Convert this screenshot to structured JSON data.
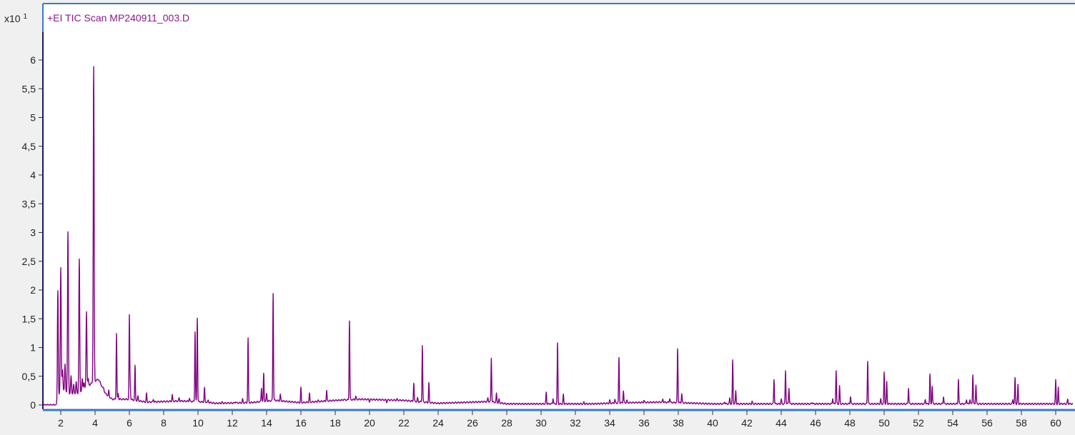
{
  "chart_data": {
    "type": "line",
    "title": "+EI TIC Scan MP240911_003.D",
    "y_multiplier": "x10",
    "y_multiplier_exp": "1",
    "xlabel": "",
    "ylabel": "",
    "xlim": [
      1.0,
      61.0
    ],
    "ylim": [
      0,
      6.5
    ],
    "x_ticks": [
      "2",
      "4",
      "6",
      "8",
      "10",
      "12",
      "14",
      "16",
      "18",
      "20",
      "22",
      "24",
      "26",
      "28",
      "30",
      "32",
      "34",
      "36",
      "38",
      "40",
      "42",
      "44",
      "46",
      "48",
      "50",
      "52",
      "54",
      "56",
      "58",
      "60"
    ],
    "y_ticks": [
      "0",
      "0,5",
      "1",
      "1,5",
      "2",
      "2,5",
      "3",
      "3,5",
      "4",
      "4,5",
      "5",
      "5,5",
      "6"
    ],
    "grid": false,
    "colors": {
      "trace": "#800080",
      "frame": "#3a78c8",
      "axis": "#1a1a60",
      "background": "#ffffff"
    },
    "series": [
      {
        "peaks": [
          [
            1.83,
            2.0
          ],
          [
            2.0,
            2.4
          ],
          [
            2.1,
            0.6
          ],
          [
            2.25,
            0.7
          ],
          [
            2.42,
            3.0
          ],
          [
            2.6,
            0.5
          ],
          [
            2.75,
            0.35
          ],
          [
            2.9,
            0.4
          ],
          [
            3.08,
            2.53
          ],
          [
            3.25,
            0.45
          ],
          [
            3.35,
            0.4
          ],
          [
            3.5,
            1.63
          ],
          [
            3.6,
            0.45
          ],
          [
            3.92,
            5.88
          ],
          [
            4.5,
            0.3
          ],
          [
            4.8,
            0.25
          ],
          [
            5.25,
            1.25
          ],
          [
            5.35,
            0.2
          ],
          [
            6.0,
            1.55
          ],
          [
            6.05,
            0.35
          ],
          [
            6.33,
            0.68
          ],
          [
            6.5,
            0.15
          ],
          [
            7.0,
            0.2
          ],
          [
            7.4,
            0.1
          ],
          [
            8.5,
            0.18
          ],
          [
            8.9,
            0.12
          ],
          [
            9.5,
            0.12
          ],
          [
            9.83,
            1.28
          ],
          [
            9.96,
            1.52
          ],
          [
            10.38,
            0.3
          ],
          [
            10.6,
            0.08
          ],
          [
            11.4,
            0.05
          ],
          [
            12.2,
            0.06
          ],
          [
            12.6,
            0.1
          ],
          [
            12.92,
            1.16
          ],
          [
            13.7,
            0.3
          ],
          [
            13.83,
            0.55
          ],
          [
            14.0,
            0.2
          ],
          [
            14.38,
            1.95
          ],
          [
            14.8,
            0.18
          ],
          [
            16.0,
            0.3
          ],
          [
            16.5,
            0.2
          ],
          [
            17.0,
            0.08
          ],
          [
            17.5,
            0.25
          ],
          [
            18.5,
            0.1
          ],
          [
            18.83,
            1.47
          ],
          [
            19.2,
            0.15
          ],
          [
            20.0,
            0.06
          ],
          [
            21.0,
            0.05
          ],
          [
            21.6,
            0.1
          ],
          [
            22.58,
            0.38
          ],
          [
            22.8,
            0.12
          ],
          [
            23.08,
            1.04
          ],
          [
            23.46,
            0.38
          ],
          [
            26.0,
            0.05
          ],
          [
            26.9,
            0.12
          ],
          [
            27.1,
            0.82
          ],
          [
            27.4,
            0.2
          ],
          [
            27.55,
            0.1
          ],
          [
            30.3,
            0.22
          ],
          [
            30.7,
            0.12
          ],
          [
            30.96,
            1.07
          ],
          [
            31.3,
            0.18
          ],
          [
            32.5,
            0.05
          ],
          [
            34.0,
            0.08
          ],
          [
            34.3,
            0.1
          ],
          [
            34.54,
            0.82
          ],
          [
            34.8,
            0.25
          ],
          [
            35.0,
            0.08
          ],
          [
            36.0,
            0.08
          ],
          [
            37.1,
            0.1
          ],
          [
            37.5,
            0.12
          ],
          [
            37.96,
            0.98
          ],
          [
            38.2,
            0.2
          ],
          [
            40.7,
            0.06
          ],
          [
            41.0,
            0.12
          ],
          [
            41.17,
            0.78
          ],
          [
            41.35,
            0.25
          ],
          [
            42.3,
            0.06
          ],
          [
            43.58,
            0.45
          ],
          [
            44.0,
            0.1
          ],
          [
            44.25,
            0.6
          ],
          [
            44.45,
            0.3
          ],
          [
            45.8,
            0.05
          ],
          [
            47.0,
            0.12
          ],
          [
            47.2,
            0.6
          ],
          [
            47.4,
            0.33
          ],
          [
            48.04,
            0.15
          ],
          [
            49.04,
            0.77
          ],
          [
            49.8,
            0.1
          ],
          [
            50.0,
            0.57
          ],
          [
            50.15,
            0.4
          ],
          [
            51.42,
            0.3
          ],
          [
            52.4,
            0.1
          ],
          [
            52.67,
            0.53
          ],
          [
            52.8,
            0.33
          ],
          [
            53.46,
            0.15
          ],
          [
            54.33,
            0.45
          ],
          [
            54.8,
            0.1
          ],
          [
            55.0,
            0.1
          ],
          [
            55.17,
            0.53
          ],
          [
            55.35,
            0.35
          ],
          [
            57.5,
            0.1
          ],
          [
            57.63,
            0.47
          ],
          [
            57.8,
            0.35
          ],
          [
            60.0,
            0.43
          ],
          [
            60.15,
            0.3
          ],
          [
            60.7,
            0.1
          ]
        ],
        "baseline": [
          [
            1.0,
            0.0
          ],
          [
            1.8,
            0.0
          ],
          [
            2.0,
            0.3
          ],
          [
            2.5,
            0.2
          ],
          [
            3.0,
            0.2
          ],
          [
            3.9,
            0.4
          ],
          [
            4.2,
            0.45
          ],
          [
            4.6,
            0.2
          ],
          [
            5.0,
            0.1
          ],
          [
            6.0,
            0.1
          ],
          [
            7.0,
            0.05
          ],
          [
            9.0,
            0.07
          ],
          [
            10.5,
            0.05
          ],
          [
            11.0,
            0.03
          ],
          [
            13.0,
            0.04
          ],
          [
            14.5,
            0.08
          ],
          [
            16.0,
            0.04
          ],
          [
            18.0,
            0.08
          ],
          [
            19.5,
            0.1
          ],
          [
            22.0,
            0.08
          ],
          [
            24.0,
            0.03
          ],
          [
            27.0,
            0.06
          ],
          [
            28.0,
            0.02
          ],
          [
            33.0,
            0.02
          ],
          [
            35.0,
            0.04
          ],
          [
            37.0,
            0.05
          ],
          [
            40.0,
            0.02
          ],
          [
            61.0,
            0.02
          ]
        ]
      }
    ]
  }
}
